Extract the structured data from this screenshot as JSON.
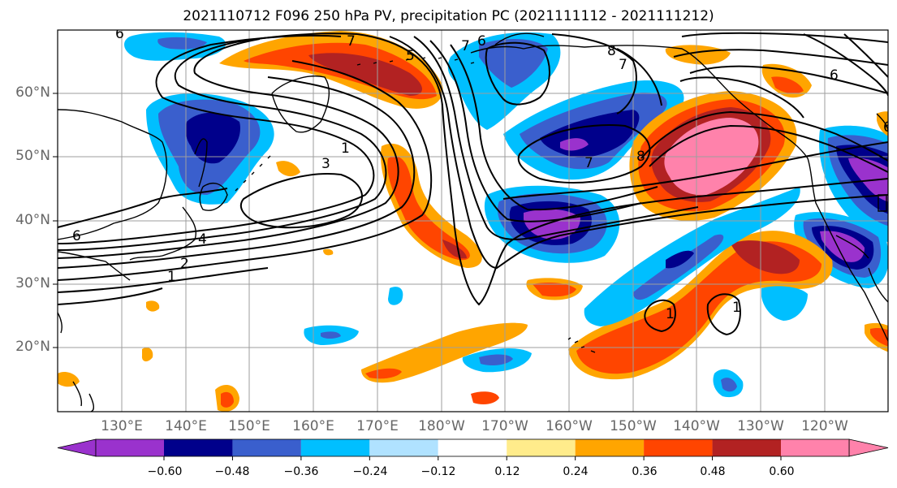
{
  "title": "2021110712 F096 250 hPa PV, precipitation PC (2021111112 - 2021111212)",
  "lat_labels": [
    "60°N",
    "50°N",
    "40°N",
    "30°N",
    "20°N"
  ],
  "lon_labels": [
    "130°E",
    "140°E",
    "150°E",
    "160°E",
    "170°E",
    "180°W",
    "170°W",
    "160°W",
    "150°W",
    "140°W",
    "130°W",
    "120°W"
  ],
  "colorbar": {
    "colors": [
      "#9a32cd",
      "#00008b",
      "#3a5fcd",
      "#00bfff",
      "#b0e2ff",
      "#ffffff",
      "#ffec8b",
      "#ffa500",
      "#ff4500",
      "#b22222",
      "#ff82ab"
    ],
    "tick_labels": [
      "−0.60",
      "−0.48",
      "−0.36",
      "−0.24",
      "−0.12",
      "0.12",
      "0.24",
      "0.36",
      "0.48",
      "0.60"
    ]
  },
  "contour_labels": [
    "6",
    "7",
    "5",
    "6",
    "7",
    "8",
    "7",
    "6",
    "6",
    "3",
    "1",
    "4",
    "2",
    "1",
    "7",
    "8",
    "1",
    "1",
    "6"
  ],
  "colors": {
    "frame": "#000000",
    "grid": "#9e9e9e",
    "contour": "#000000"
  }
}
